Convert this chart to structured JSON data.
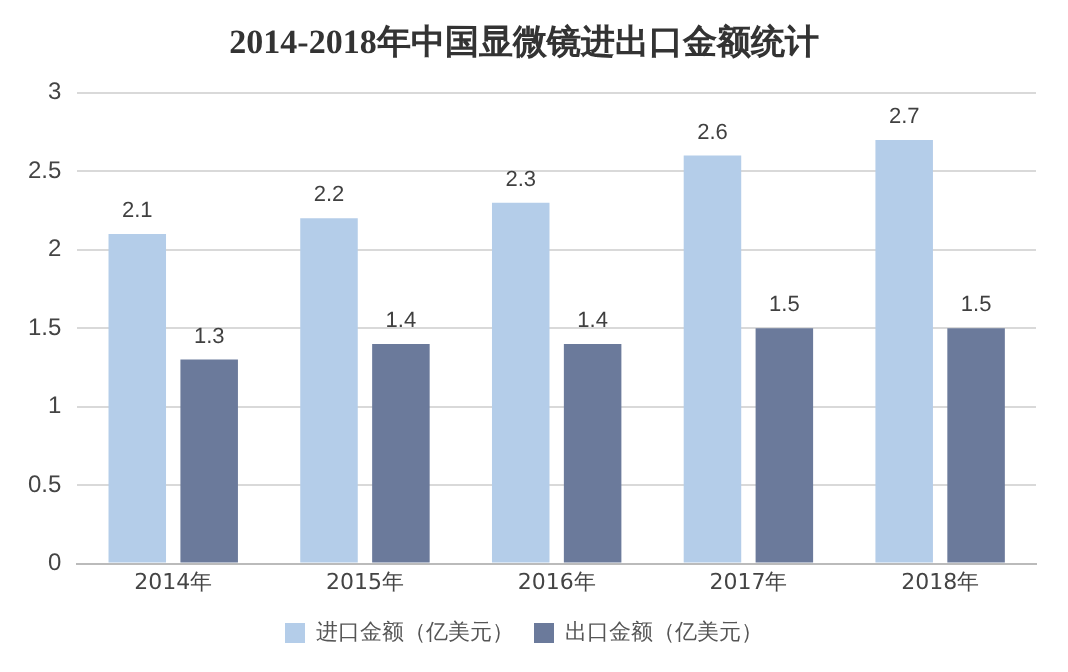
{
  "chart_data": {
    "type": "bar",
    "title": "2014-2018年中国显微镜进出口金额统计",
    "categories": [
      "2014年",
      "2015年",
      "2016年",
      "2017年",
      "2018年"
    ],
    "series": [
      {
        "name": "进口金额（亿美元）",
        "color": "#b4cde9",
        "values": [
          2.1,
          2.2,
          2.3,
          2.6,
          2.7
        ]
      },
      {
        "name": "出口金额（亿美元）",
        "color": "#6b7a9b",
        "values": [
          1.3,
          1.4,
          1.4,
          1.5,
          1.5
        ]
      }
    ],
    "ylim": [
      0,
      3
    ],
    "yticks": [
      0,
      0.5,
      1,
      1.5,
      2,
      2.5,
      3
    ],
    "grid": "y",
    "legend": "bottom",
    "data_labels": true
  }
}
